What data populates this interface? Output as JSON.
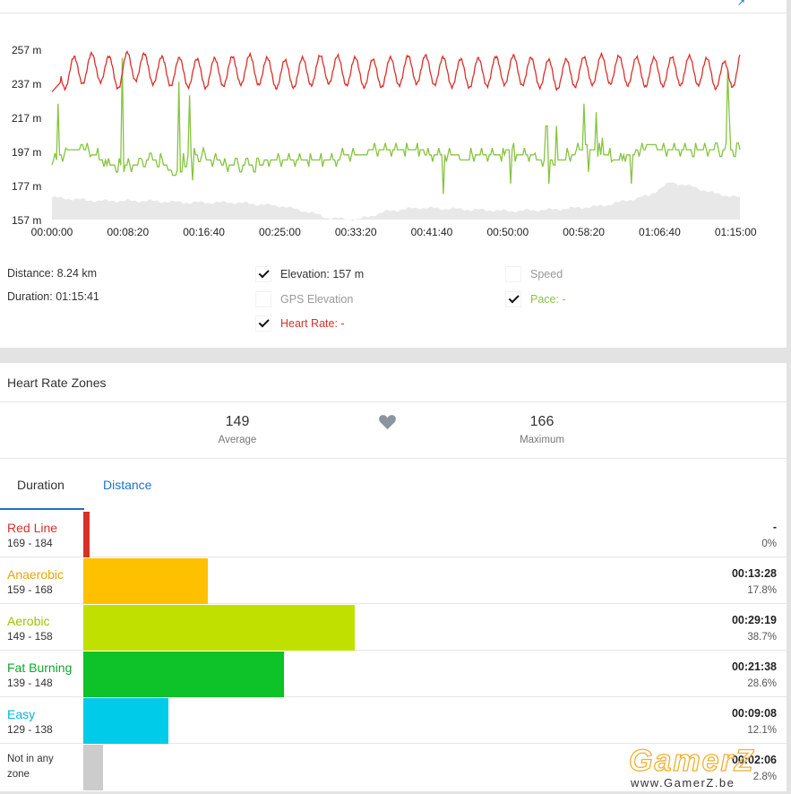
{
  "chart": {
    "y_ticks": [
      "257 m",
      "237 m",
      "217 m",
      "197 m",
      "177 m",
      "157 m"
    ],
    "x_ticks": [
      "00:00:00",
      "00:08:20",
      "00:16:40",
      "00:25:00",
      "00:33:20",
      "00:41:40",
      "00:50:00",
      "00:58:20",
      "01:06:40",
      "01:15:00"
    ],
    "colors": {
      "heart_rate": "#d9302b",
      "pace": "#86c440",
      "elevation_fill": "#e8e8e8"
    }
  },
  "chart_data": {
    "type": "line",
    "xlabel": "",
    "ylabel": "",
    "x_ticks": [
      "00:00:00",
      "00:08:20",
      "00:16:40",
      "00:25:00",
      "00:33:20",
      "00:41:40",
      "00:50:00",
      "00:58:20",
      "01:06:40",
      "01:15:00"
    ],
    "y_ticks": [
      "257 m",
      "237 m",
      "217 m",
      "197 m",
      "177 m",
      "157 m"
    ],
    "xlim_seconds": [
      0,
      4500
    ],
    "ylim": [
      157,
      257
    ],
    "grid": false,
    "series": [
      {
        "name": "Heart Rate",
        "color": "#d9302b",
        "unit": "m-axis",
        "x_seconds": [
          0,
          150,
          300,
          450,
          500,
          700,
          1000,
          1300,
          1500,
          1800,
          2100,
          2400,
          2700,
          3000,
          3300,
          3600,
          3900,
          4200,
          4430,
          4500
        ],
        "values": [
          232,
          245,
          252,
          238,
          255,
          245,
          240,
          248,
          238,
          248,
          240,
          248,
          240,
          247,
          238,
          248,
          242,
          246,
          235,
          256
        ]
      },
      {
        "name": "Pace",
        "color": "#86c440",
        "x_seconds": [
          0,
          100,
          200,
          400,
          700,
          800,
          900,
          1200,
          1500,
          1800,
          2100,
          2400,
          2700,
          3000,
          3300,
          3500,
          3700,
          3900,
          4200,
          4430,
          4500
        ],
        "values": [
          190,
          197,
          200,
          188,
          192,
          183,
          196,
          188,
          192,
          192,
          197,
          197,
          193,
          197,
          190,
          200,
          192,
          200,
          197,
          197,
          197
        ]
      },
      {
        "name": "Elevation",
        "color": "#e8e8e8",
        "x_seconds": [
          0,
          300,
          600,
          900,
          1200,
          1500,
          1700,
          1800,
          2000,
          2200,
          2400,
          2700,
          3000,
          3300,
          3600,
          3900,
          4050,
          4200,
          4350,
          4500
        ],
        "values": [
          170,
          168,
          168,
          167,
          167,
          165,
          161,
          158,
          157,
          162,
          164,
          163,
          162,
          163,
          165,
          171,
          179,
          176,
          172,
          170
        ]
      }
    ]
  },
  "stats": {
    "distance_label": "Distance:",
    "distance_value": "8.24 km",
    "duration_label": "Duration:",
    "duration_value": "01:15:41"
  },
  "toggles": {
    "elevation": "Elevation:",
    "elevation_value": "157 m",
    "gps_elevation": "GPS Elevation",
    "heart_rate": "Heart Rate: -",
    "speed": "Speed",
    "pace": "Pace: -"
  },
  "hrz": {
    "title": "Heart Rate Zones",
    "average": "149",
    "average_label": "Average",
    "maximum": "166",
    "maximum_label": "Maximum",
    "tabs": [
      "Duration",
      "Distance"
    ],
    "zones": [
      {
        "name": "Red Line",
        "range": "169 - 184",
        "time": "-",
        "pct": "0%",
        "pct_value": 0,
        "color": "#d9302b",
        "name_color": "#d9302b"
      },
      {
        "name": "Anaerobic",
        "range": "159 - 168",
        "time": "00:13:28",
        "pct": "17.8%",
        "pct_value": 17.8,
        "color": "#ffc000",
        "name_color": "#e8a800"
      },
      {
        "name": "Aerobic",
        "range": "149 - 158",
        "time": "00:29:19",
        "pct": "38.7%",
        "pct_value": 38.7,
        "color": "#c0e000",
        "name_color": "#9cc400"
      },
      {
        "name": "Fat Burning",
        "range": "139 - 148",
        "time": "00:21:38",
        "pct": "28.6%",
        "pct_value": 28.6,
        "color": "#0ec22a",
        "name_color": "#0ea82a"
      },
      {
        "name": "Easy",
        "range": "129 - 138",
        "time": "00:09:08",
        "pct": "12.1%",
        "pct_value": 12.1,
        "color": "#00cbe8",
        "name_color": "#00b8d6"
      },
      {
        "name": "Not in any zone",
        "range": "",
        "time": "00:02:06",
        "pct": "2.8%",
        "pct_value": 2.8,
        "color": "#cccccc",
        "name_color": "#333333"
      }
    ]
  },
  "watermark": {
    "logo": "GamerZ",
    "url": "www.GamerZ.be"
  }
}
